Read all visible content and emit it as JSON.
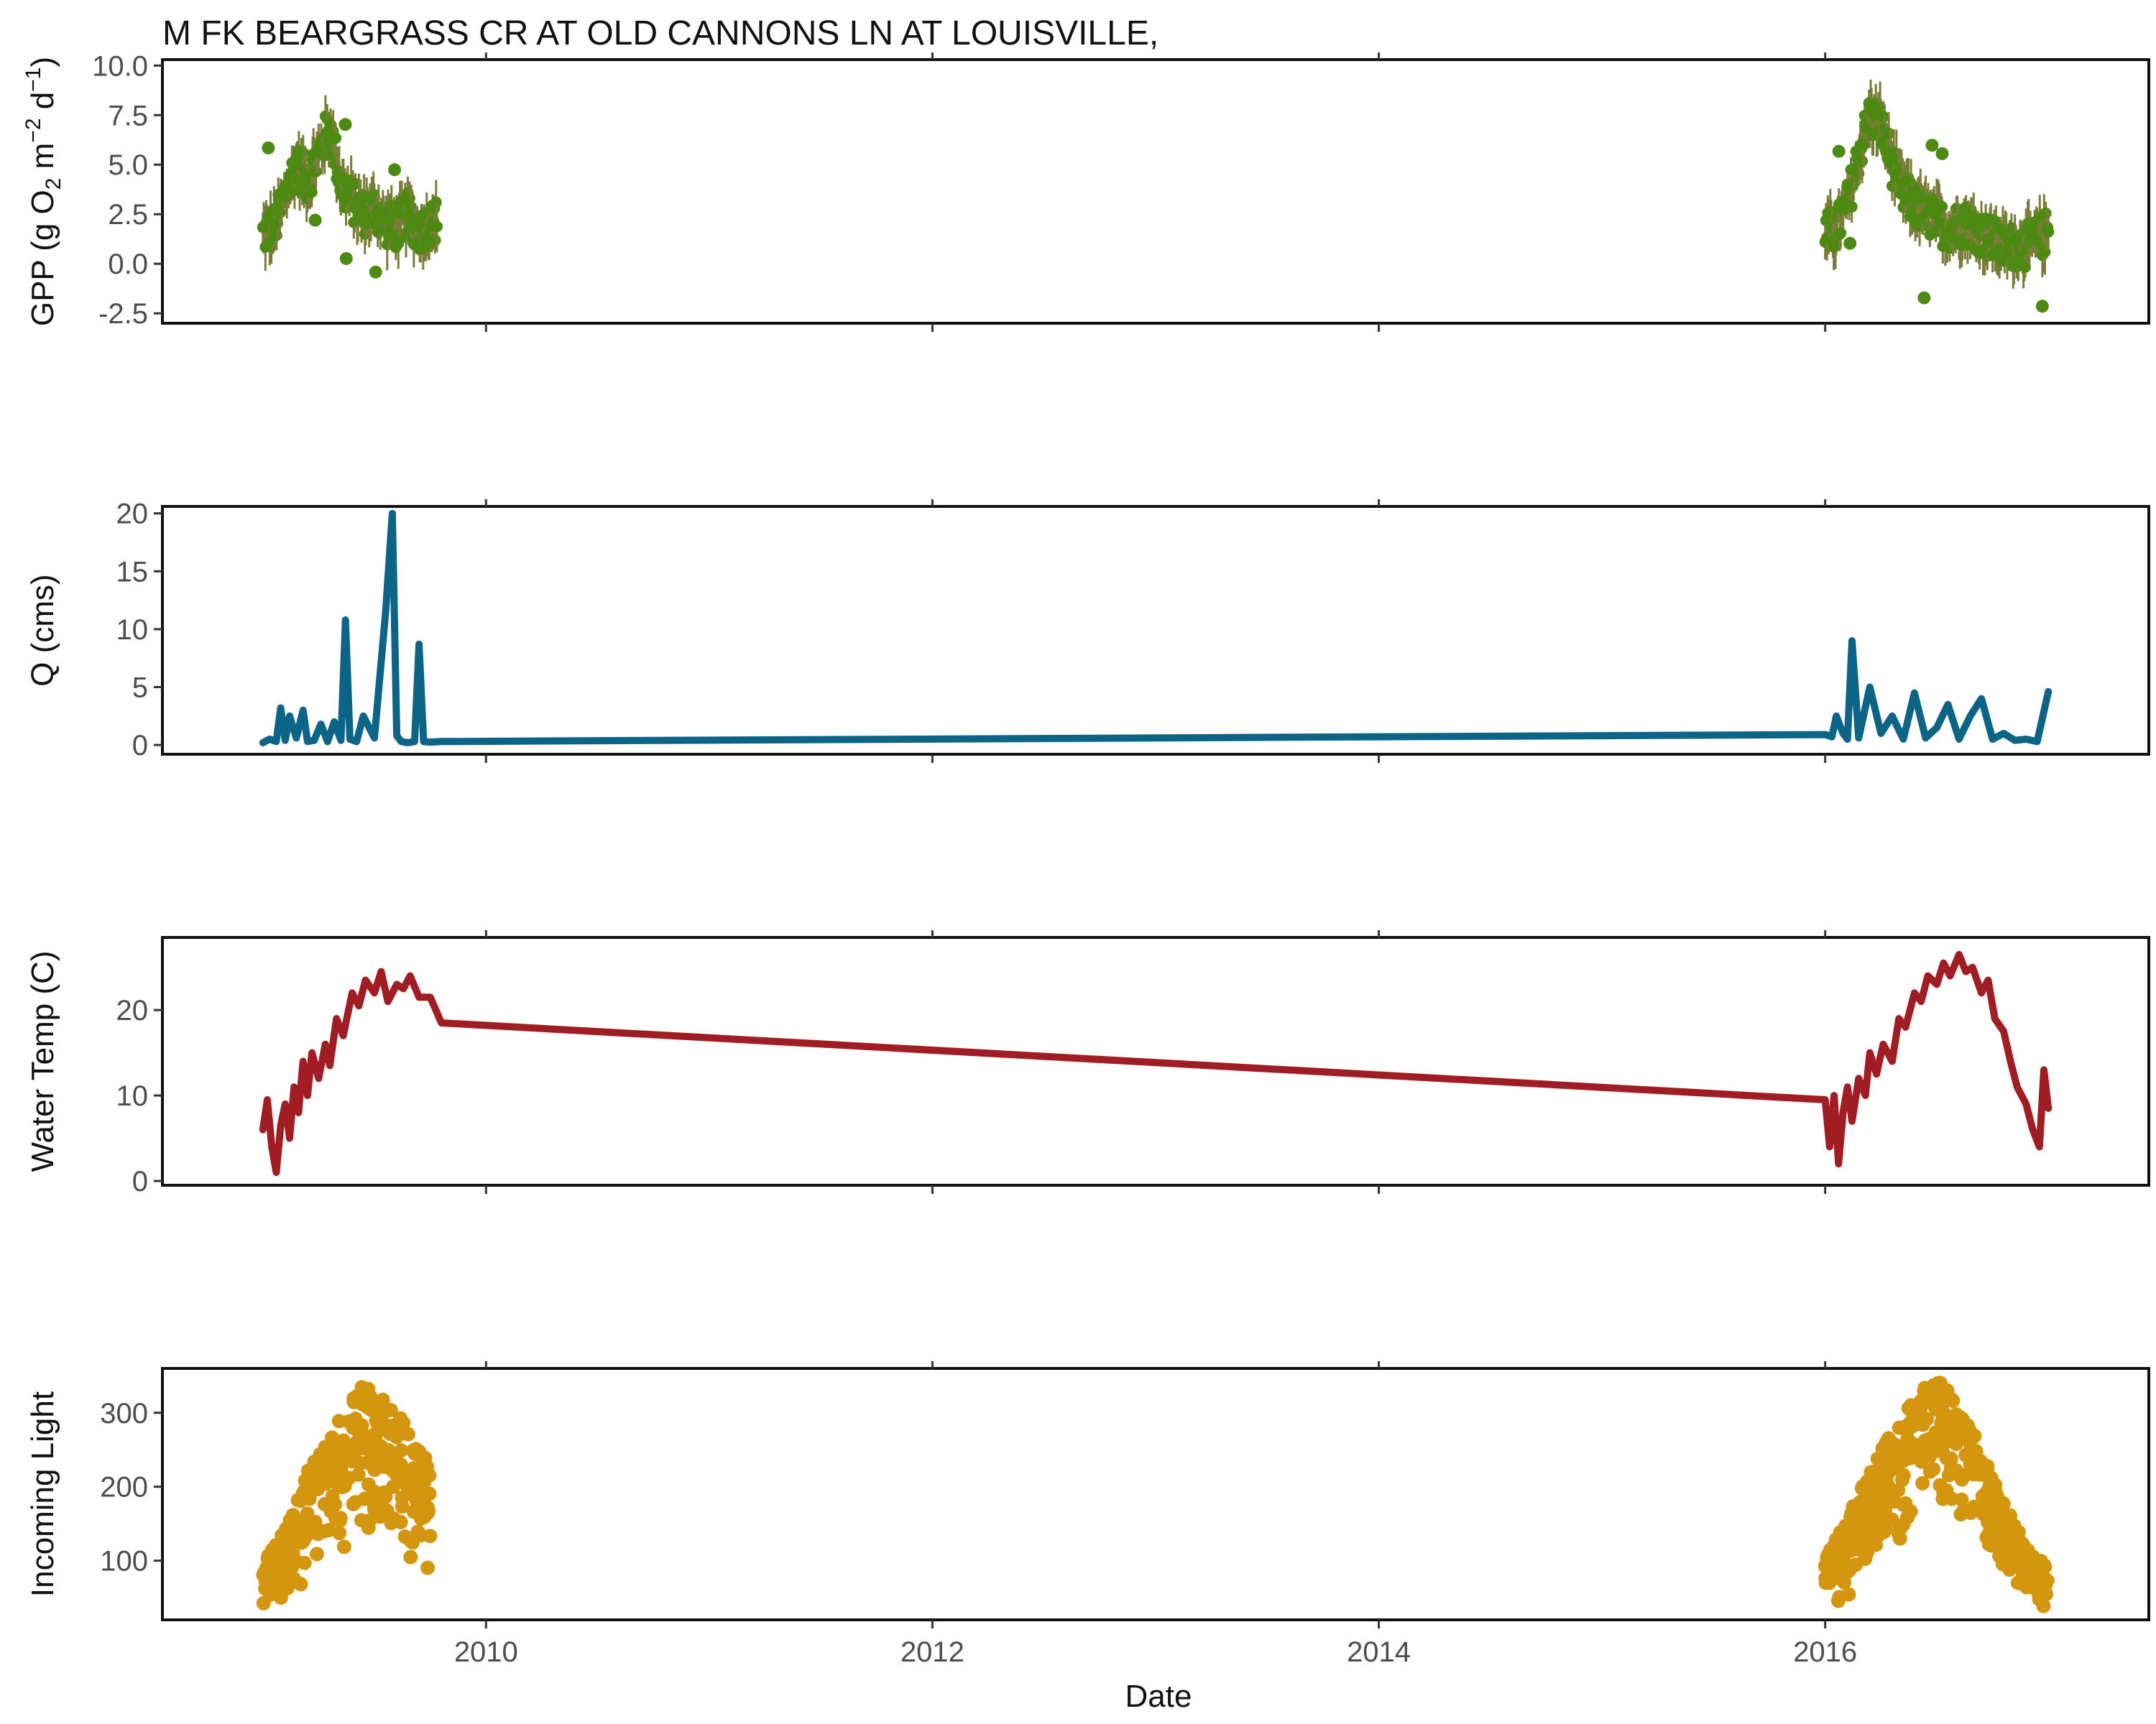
{
  "title": "M FK BEARGRASS CR AT OLD CANNONS LN AT LOUISVILLE,",
  "xaxis": {
    "label": "Date",
    "ticks": [
      2010,
      2012,
      2014,
      2016
    ],
    "range": [
      2008.55,
      2017.45
    ]
  },
  "chart_data": [
    {
      "type": "scatter",
      "name": "gpp",
      "ylabel": {
        "prefix": "GPP (g  O",
        "sub1": "2",
        "mid": " m",
        "sup1": "−2",
        "mid2": " d",
        "sup2": "−1",
        "suffix": ")"
      },
      "yticks": [
        -2.5,
        0.0,
        2.5,
        5.0,
        7.5,
        10.0
      ],
      "ytick_labels": [
        "-2.5",
        "0.0",
        "2.5",
        "5.0",
        "7.5",
        "10.0"
      ],
      "ylim": [
        -3.0,
        10.3
      ],
      "color": "#4d8a12",
      "band_color": "#7a7d3a",
      "segments": [
        {
          "x": [
            2009.0,
            2009.05,
            2009.1,
            2009.15,
            2009.2,
            2009.25,
            2009.3,
            2009.35,
            2009.4,
            2009.45,
            2009.5,
            2009.55,
            2009.6,
            2009.65,
            2009.7,
            2009.75,
            2009.78
          ],
          "y": [
            1.5,
            1.8,
            3.5,
            5.0,
            4.2,
            5.5,
            7.0,
            4.0,
            3.2,
            2.5,
            2.8,
            2.0,
            1.8,
            2.5,
            1.6,
            2.0,
            2.2
          ]
        },
        {
          "x": [
            2016.0,
            2016.05,
            2016.1,
            2016.15,
            2016.2,
            2016.25,
            2016.3,
            2016.35,
            2016.4,
            2016.45,
            2016.5,
            2016.55,
            2016.6,
            2016.65,
            2016.7,
            2016.75,
            2016.8,
            2016.85,
            2016.9,
            2016.95,
            2017.0
          ],
          "y": [
            1.5,
            1.7,
            3.0,
            5.5,
            7.5,
            7.0,
            5.0,
            3.5,
            3.0,
            2.5,
            2.2,
            1.8,
            2.0,
            2.0,
            1.5,
            1.2,
            0.8,
            0.9,
            0.9,
            1.2,
            1.7
          ]
        }
      ]
    },
    {
      "type": "line",
      "name": "q",
      "ylabel": "Q (cms)",
      "yticks": [
        0,
        5,
        10,
        15,
        20
      ],
      "ytick_labels": [
        "0",
        "5",
        "10",
        "15",
        "20"
      ],
      "ylim": [
        -0.8,
        20.6
      ],
      "color": "#0c6486",
      "x": [
        2009.0,
        2009.03,
        2009.06,
        2009.08,
        2009.1,
        2009.12,
        2009.15,
        2009.18,
        2009.2,
        2009.23,
        2009.26,
        2009.29,
        2009.32,
        2009.35,
        2009.37,
        2009.39,
        2009.42,
        2009.45,
        2009.5,
        2009.55,
        2009.58,
        2009.6,
        2009.62,
        2009.65,
        2009.68,
        2009.7,
        2009.72,
        2009.75,
        2009.8,
        2016.0,
        2016.03,
        2016.05,
        2016.08,
        2016.1,
        2016.12,
        2016.15,
        2016.2,
        2016.25,
        2016.3,
        2016.35,
        2016.4,
        2016.45,
        2016.5,
        2016.55,
        2016.6,
        2016.65,
        2016.7,
        2016.75,
        2016.8,
        2016.85,
        2016.9,
        2016.95,
        2017.0
      ],
      "y": [
        0.2,
        0.5,
        0.3,
        3.2,
        0.4,
        2.5,
        0.6,
        3.0,
        0.3,
        0.4,
        1.8,
        0.3,
        2.0,
        0.4,
        10.8,
        0.5,
        0.3,
        2.5,
        0.6,
        11.5,
        20.0,
        0.8,
        0.3,
        0.2,
        0.3,
        8.7,
        0.3,
        0.25,
        0.3,
        0.9,
        0.7,
        2.5,
        1.0,
        0.5,
        9.0,
        0.6,
        5.0,
        1.0,
        2.5,
        0.5,
        4.5,
        0.6,
        1.5,
        3.5,
        0.5,
        2.5,
        4.0,
        0.5,
        1.0,
        0.4,
        0.5,
        0.3,
        4.6
      ]
    },
    {
      "type": "line",
      "name": "water_temp",
      "ylabel": "Water Temp (C)",
      "yticks": [
        0,
        10,
        20
      ],
      "ytick_labels": [
        "0",
        "10",
        "20"
      ],
      "ylim": [
        -0.5,
        28.5
      ],
      "color": "#a01e23",
      "x": [
        2009.0,
        2009.02,
        2009.04,
        2009.06,
        2009.08,
        2009.1,
        2009.12,
        2009.14,
        2009.16,
        2009.18,
        2009.2,
        2009.22,
        2009.25,
        2009.28,
        2009.3,
        2009.33,
        2009.36,
        2009.4,
        2009.43,
        2009.46,
        2009.5,
        2009.53,
        2009.56,
        2009.6,
        2009.63,
        2009.66,
        2009.7,
        2009.75,
        2009.8,
        2016.0,
        2016.02,
        2016.04,
        2016.06,
        2016.08,
        2016.1,
        2016.12,
        2016.15,
        2016.18,
        2016.2,
        2016.23,
        2016.26,
        2016.3,
        2016.33,
        2016.36,
        2016.4,
        2016.43,
        2016.46,
        2016.5,
        2016.53,
        2016.56,
        2016.6,
        2016.63,
        2016.66,
        2016.7,
        2016.73,
        2016.76,
        2016.8,
        2016.83,
        2016.86,
        2016.9,
        2016.93,
        2016.96,
        2016.98,
        2017.0
      ],
      "y": [
        6.0,
        9.5,
        4.0,
        1.0,
        6.5,
        9.0,
        5.0,
        11.0,
        8.0,
        14.0,
        10.0,
        15.0,
        12.0,
        16.0,
        13.5,
        19.0,
        17.0,
        22.0,
        20.5,
        23.5,
        22.0,
        24.5,
        21.0,
        23.0,
        22.5,
        24.0,
        21.5,
        21.5,
        18.5,
        9.5,
        4.0,
        10.0,
        2.0,
        8.0,
        11.0,
        7.0,
        12.0,
        10.0,
        15.0,
        12.5,
        16.0,
        14.0,
        19.0,
        18.0,
        22.0,
        21.0,
        24.0,
        23.0,
        25.5,
        24.0,
        26.5,
        24.5,
        25.0,
        22.0,
        23.5,
        19.0,
        17.5,
        14.0,
        11.0,
        9.0,
        6.0,
        4.0,
        13.0,
        8.5
      ]
    },
    {
      "type": "scatter",
      "name": "light",
      "ylabel": "Incoming Light",
      "yticks": [
        100,
        200,
        300
      ],
      "ytick_labels": [
        "100",
        "200",
        "300"
      ],
      "ylim": [
        20,
        360
      ],
      "color": "#d4950f",
      "envelope": [
        {
          "x": [
            2009.0,
            2009.05,
            2009.1,
            2009.15,
            2009.2,
            2009.25,
            2009.3,
            2009.35,
            2009.4,
            2009.45,
            2009.5,
            2009.55,
            2009.6,
            2009.65,
            2009.7,
            2009.75
          ],
          "lo": [
            35,
            40,
            50,
            60,
            70,
            80,
            90,
            110,
            120,
            140,
            130,
            150,
            120,
            90,
            100,
            75
          ],
          "hi": [
            100,
            120,
            150,
            180,
            220,
            250,
            270,
            310,
            330,
            340,
            330,
            320,
            300,
            280,
            260,
            230
          ]
        },
        {
          "x": [
            2016.0,
            2016.05,
            2016.1,
            2016.15,
            2016.2,
            2016.25,
            2016.3,
            2016.35,
            2016.4,
            2016.45,
            2016.5,
            2016.55,
            2016.6,
            2016.65,
            2016.7,
            2016.75,
            2016.8,
            2016.85,
            2016.9,
            2016.95,
            2017.0
          ],
          "lo": [
            60,
            40,
            50,
            60,
            70,
            90,
            110,
            120,
            140,
            160,
            170,
            180,
            160,
            140,
            120,
            100,
            80,
            60,
            40,
            30,
            40
          ],
          "hi": [
            110,
            130,
            160,
            190,
            220,
            250,
            280,
            300,
            320,
            335,
            345,
            330,
            310,
            280,
            250,
            210,
            180,
            150,
            120,
            100,
            100
          ]
        }
      ]
    }
  ]
}
